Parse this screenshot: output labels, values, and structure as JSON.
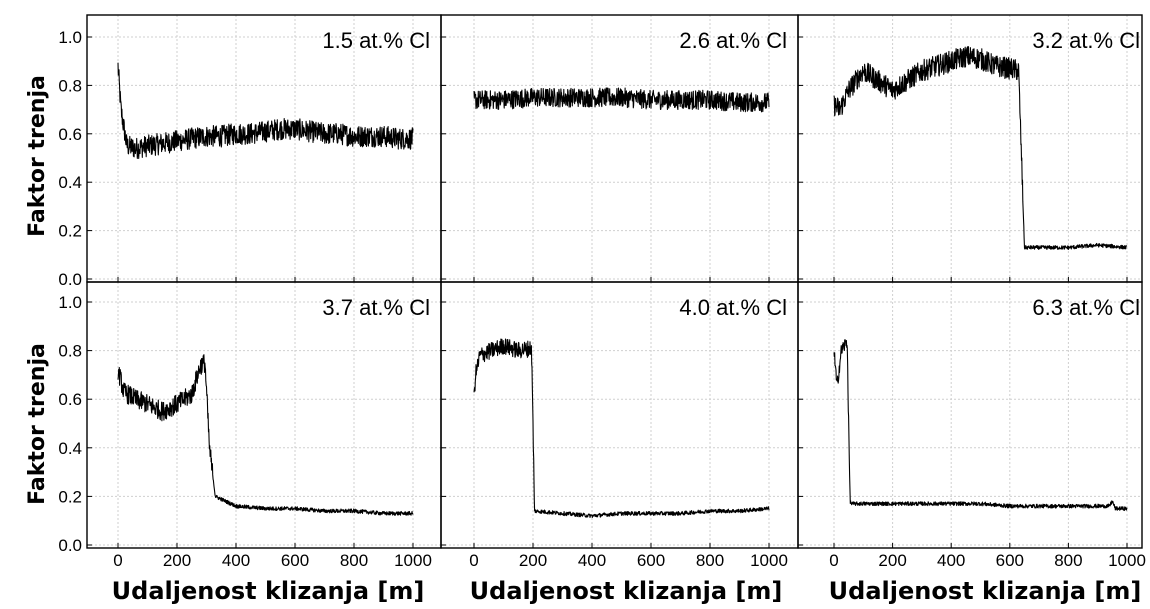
{
  "chart_data": {
    "type": "line",
    "ylabel": "Faktor trenja",
    "xlabel": "Udaljenost klizanja [m]",
    "xlim": [
      0,
      1000
    ],
    "ylim": [
      0,
      1.0
    ],
    "x_ticks": [
      "0",
      "200",
      "400",
      "600",
      "800",
      "1000"
    ],
    "y_ticks": [
      "0.0",
      "0.2",
      "0.4",
      "0.6",
      "0.8",
      "1.0"
    ],
    "grid": true,
    "panels": [
      {
        "title": "1.5 at.% Cl",
        "x": [
          0,
          10,
          30,
          60,
          100,
          150,
          200,
          250,
          300,
          350,
          400,
          450,
          500,
          550,
          600,
          650,
          700,
          750,
          800,
          850,
          900,
          950,
          1000
        ],
        "y": [
          0.88,
          0.7,
          0.55,
          0.54,
          0.55,
          0.56,
          0.57,
          0.58,
          0.59,
          0.59,
          0.6,
          0.6,
          0.61,
          0.62,
          0.62,
          0.61,
          0.6,
          0.6,
          0.59,
          0.59,
          0.59,
          0.58,
          0.58
        ],
        "noise": 0.045
      },
      {
        "title": "2.6 at.% Cl",
        "x": [
          0,
          50,
          100,
          200,
          300,
          400,
          500,
          600,
          700,
          800,
          900,
          1000
        ],
        "y": [
          0.74,
          0.74,
          0.74,
          0.75,
          0.75,
          0.75,
          0.75,
          0.74,
          0.74,
          0.74,
          0.73,
          0.73
        ],
        "noise": 0.04
      },
      {
        "title": "3.2 at.% Cl",
        "x": [
          0,
          20,
          50,
          100,
          150,
          200,
          250,
          300,
          350,
          400,
          450,
          500,
          550,
          600,
          630,
          640,
          650,
          700,
          800,
          900,
          1000
        ],
        "y": [
          0.72,
          0.7,
          0.78,
          0.86,
          0.82,
          0.78,
          0.82,
          0.86,
          0.88,
          0.9,
          0.92,
          0.91,
          0.88,
          0.87,
          0.86,
          0.5,
          0.13,
          0.13,
          0.13,
          0.14,
          0.13
        ],
        "noise": 0.045
      },
      {
        "title": "3.7 at.% Cl",
        "x": [
          0,
          20,
          60,
          100,
          150,
          200,
          250,
          280,
          295,
          310,
          330,
          400,
          500,
          600,
          700,
          800,
          900,
          1000
        ],
        "y": [
          0.72,
          0.63,
          0.6,
          0.58,
          0.55,
          0.58,
          0.62,
          0.74,
          0.75,
          0.4,
          0.2,
          0.16,
          0.15,
          0.15,
          0.14,
          0.14,
          0.13,
          0.13
        ],
        "noise": 0.04
      },
      {
        "title": "4.0 at.% Cl",
        "x": [
          0,
          5,
          20,
          60,
          100,
          150,
          195,
          200,
          205,
          300,
          400,
          500,
          600,
          700,
          800,
          900,
          1000
        ],
        "y": [
          0.6,
          0.7,
          0.78,
          0.8,
          0.82,
          0.8,
          0.81,
          0.5,
          0.14,
          0.13,
          0.12,
          0.13,
          0.13,
          0.13,
          0.14,
          0.14,
          0.15
        ],
        "noise": 0.035
      },
      {
        "title": "6.3 at.% Cl",
        "x": [
          0,
          10,
          25,
          45,
          50,
          55,
          60,
          100,
          200,
          300,
          400,
          500,
          600,
          700,
          800,
          900,
          940,
          950,
          960,
          1000
        ],
        "y": [
          0.8,
          0.65,
          0.8,
          0.84,
          0.5,
          0.18,
          0.17,
          0.17,
          0.17,
          0.17,
          0.17,
          0.17,
          0.16,
          0.16,
          0.16,
          0.16,
          0.16,
          0.18,
          0.15,
          0.15
        ],
        "noise": 0.03
      }
    ]
  }
}
